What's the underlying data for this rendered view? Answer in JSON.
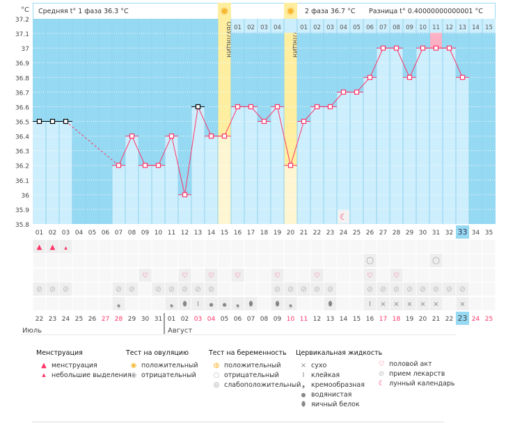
{
  "header": {
    "unit": "°C",
    "phase1": "Средняя t° 1 фаза  36.3 °C",
    "phase2": "2 фаза  36.7 °C",
    "difference": "Разница t° 0.40000000000001 °C",
    "ovulation_label": "ОВУЛЯЦИЯ"
  },
  "colors": {
    "background": "#96d9f2",
    "bar": "#cdeefc",
    "ovulation": "#fdeea0",
    "line": "#ff3366",
    "weekend": "#ff3366",
    "today": "#96d9f2"
  },
  "y_ticks": [
    "37.2",
    "37.1",
    "37",
    "36.9",
    "36.8",
    "36.7",
    "36.6",
    "36.5",
    "36.4",
    "36.3",
    "36.2",
    "36.1",
    "36",
    "35.9",
    "35.8"
  ],
  "ovulation_days": [
    15,
    20
  ],
  "post_ovulation_labels": {
    "after_first": [
      "01",
      "02",
      "03",
      "04"
    ],
    "after_second": [
      "01",
      "02",
      "03",
      "04",
      "05",
      "06",
      "07",
      "08",
      "09",
      "10",
      "11",
      "12",
      "13",
      "14",
      "15"
    ]
  },
  "today_cycle_day": "33",
  "months": [
    "Июль",
    "Август"
  ],
  "chart_data": {
    "type": "line",
    "ylim": [
      35.8,
      37.2
    ],
    "cycle_days": [
      "01",
      "02",
      "03",
      "04",
      "05",
      "06",
      "07",
      "08",
      "09",
      "10",
      "11",
      "12",
      "13",
      "14",
      "15",
      "16",
      "17",
      "18",
      "19",
      "20",
      "21",
      "22",
      "23",
      "24",
      "25",
      "26",
      "27",
      "28",
      "29",
      "30",
      "31",
      "32",
      "33",
      "34",
      "35"
    ],
    "temperatures": [
      36.5,
      36.5,
      36.5,
      null,
      null,
      null,
      36.2,
      36.4,
      36.2,
      36.2,
      36.4,
      36.0,
      36.6,
      36.4,
      36.4,
      36.6,
      36.6,
      36.5,
      36.6,
      36.2,
      36.5,
      36.6,
      36.6,
      36.7,
      36.7,
      36.8,
      37.0,
      37.0,
      36.8,
      37.0,
      37.0,
      37.0,
      36.8,
      null,
      null
    ],
    "excluded_days": [
      1,
      2,
      3,
      13
    ],
    "highlight_day": 31,
    "moon_day": 24
  },
  "dates": [
    "22",
    "23",
    "24",
    "25",
    "26",
    "27",
    "28",
    "29",
    "30",
    "31",
    "01",
    "02",
    "03",
    "04",
    "05",
    "06",
    "07",
    "08",
    "09",
    "10",
    "11",
    "12",
    "13",
    "14",
    "15",
    "16",
    "17",
    "18",
    "19",
    "20",
    "21",
    "22",
    "23",
    "24",
    "25"
  ],
  "weekend_dates_idx": [
    6,
    7,
    13,
    14,
    20,
    21,
    27,
    28,
    34,
    35
  ],
  "rows": {
    "menstruation": {
      "1": "heavy",
      "2": "heavy",
      "3": "light"
    },
    "pregnancy_test": {
      "26": "negative",
      "31": "negative"
    },
    "intercourse": [
      9,
      12,
      14,
      16,
      19,
      22,
      26,
      28
    ],
    "medication": [
      1,
      2,
      3,
      7,
      8,
      10,
      11,
      12,
      13,
      14,
      19,
      20,
      21,
      22,
      23,
      26,
      27,
      28,
      29,
      30,
      31,
      32,
      33
    ],
    "cervical_fluid": {
      "7": "creamy",
      "11": "creamy",
      "12": "eggwhite",
      "13": "sticky",
      "14": "watery",
      "15": "watery",
      "16": "creamy",
      "17": "eggwhite",
      "19": "eggwhite",
      "20": "creamy",
      "23": "eggwhite",
      "26": "sticky",
      "27": "dry",
      "28": "dry",
      "29": "dry",
      "30": "dry",
      "31": "dry",
      "33": "dry"
    }
  },
  "legend": {
    "menstruation": {
      "title": "Менструация",
      "items": [
        "менструация",
        "небольшие выделения"
      ]
    },
    "ovulation_test": {
      "title": "Тест на овуляцию",
      "items": [
        "положительный",
        "отрицательный"
      ]
    },
    "pregnancy_test": {
      "title": "Тест на беременность",
      "items": [
        "положительный",
        "отрицательный",
        "слабоположительный"
      ]
    },
    "cervical_fluid": {
      "title": "Цервикальная жидкость",
      "items": [
        "сухо",
        "клейкая",
        "кремообразная",
        "водянистая",
        "яичный белок"
      ]
    },
    "other": {
      "items": [
        "половой акт",
        "прием лекарств",
        "лунный календарь"
      ]
    }
  }
}
